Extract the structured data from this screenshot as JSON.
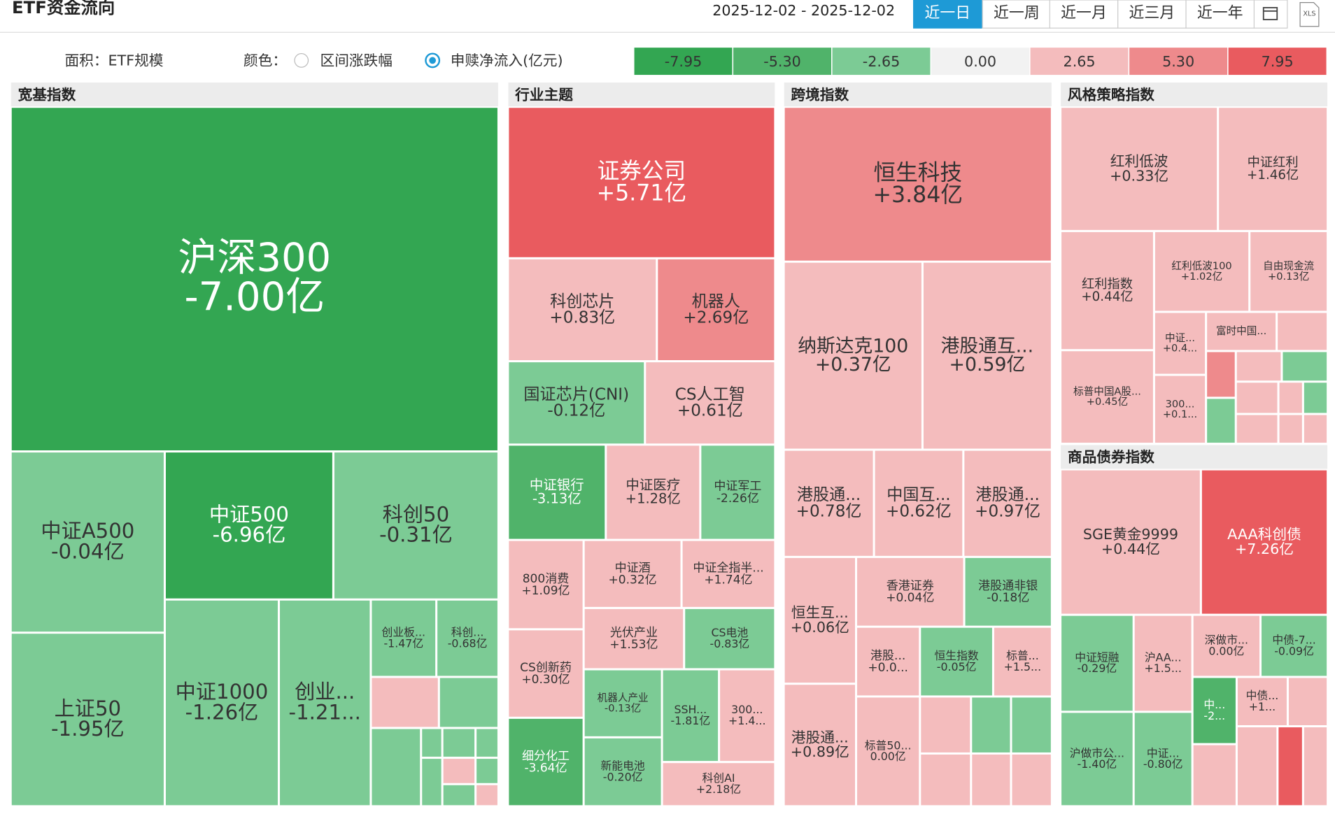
{
  "header": {
    "title": "ETF资金流向",
    "date_range": "2025-12-02 - 2025-12-02",
    "tabs": [
      "近一日",
      "近一周",
      "近一月",
      "近三月",
      "近一年"
    ],
    "export": "XLS"
  },
  "controls": {
    "area_label": "面积：ETF规模",
    "color_label": "颜色：",
    "options": [
      "区间涨跌幅",
      "申赎净流入(亿元)"
    ],
    "scale": [
      "-7.95",
      "-5.30",
      "-2.65",
      "0.00",
      "2.65",
      "5.30",
      "7.95"
    ]
  },
  "sections": [
    {
      "title": "宽基指数",
      "tiles": [
        {
          "label": "沪深300",
          "value": "-7.00亿"
        },
        {
          "label": "中证A500",
          "value": "-0.04亿"
        },
        {
          "label": "上证50",
          "value": "-1.95亿"
        },
        {
          "label": "中证500",
          "value": "-6.96亿"
        },
        {
          "label": "科创50",
          "value": "-0.31亿"
        },
        {
          "label": "中证1000",
          "value": "-1.26亿"
        },
        {
          "label": "创业...",
          "value": "-1.21..."
        },
        {
          "label": "创业板...",
          "value": "-1.47亿"
        },
        {
          "label": "科创...",
          "value": "-0.68亿"
        }
      ]
    },
    {
      "title": "行业主题",
      "tiles": [
        {
          "label": "证券公司",
          "value": "+5.71亿"
        },
        {
          "label": "科创芯片",
          "value": "+0.83亿"
        },
        {
          "label": "机器人",
          "value": "+2.69亿"
        },
        {
          "label": "国证芯片(CNI)",
          "value": "-0.12亿"
        },
        {
          "label": "CS人工智",
          "value": "+0.61亿"
        },
        {
          "label": "中证银行",
          "value": "-3.13亿"
        },
        {
          "label": "中证医疗",
          "value": "+1.28亿"
        },
        {
          "label": "中证军工",
          "value": "-2.26亿"
        },
        {
          "label": "800消费",
          "value": "+1.09亿"
        },
        {
          "label": "中证酒",
          "value": "+0.32亿"
        },
        {
          "label": "中证全指半...",
          "value": "+1.74亿"
        },
        {
          "label": "光伏产业",
          "value": "+1.53亿"
        },
        {
          "label": "CS电池",
          "value": "-0.83亿"
        },
        {
          "label": "CS创新药",
          "value": "+0.30亿"
        },
        {
          "label": "细分化工",
          "value": "-3.64亿"
        },
        {
          "label": "机器人产业",
          "value": "-0.13亿"
        },
        {
          "label": "SSH...",
          "value": "-1.81亿"
        },
        {
          "label": "300...",
          "value": "+1.4..."
        },
        {
          "label": "新能电池",
          "value": "-0.20亿"
        },
        {
          "label": "科创AI",
          "value": "+2.18亿"
        }
      ]
    },
    {
      "title": "跨境指数",
      "tiles": [
        {
          "label": "恒生科技",
          "value": "+3.84亿"
        },
        {
          "label": "纳斯达克100",
          "value": "+0.37亿"
        },
        {
          "label": "港股通互...",
          "value": "+0.59亿"
        },
        {
          "label": "港股通...",
          "value": "+0.78亿"
        },
        {
          "label": "中国互...",
          "value": "+0.62亿"
        },
        {
          "label": "港股通...",
          "value": "+0.97亿"
        },
        {
          "label": "恒生互...",
          "value": "+0.06亿"
        },
        {
          "label": "港股通...",
          "value": "+0.89亿"
        },
        {
          "label": "香港证券",
          "value": "+0.04亿"
        },
        {
          "label": "港股通非银",
          "value": "-0.18亿"
        },
        {
          "label": "港股...",
          "value": "+0.0..."
        },
        {
          "label": "恒生指数",
          "value": "-0.05亿"
        },
        {
          "label": "标普...",
          "value": "+1.5..."
        },
        {
          "label": "标普50...",
          "value": "0.00亿"
        }
      ]
    },
    {
      "title": "风格策略指数",
      "tiles": [
        {
          "label": "红利低波",
          "value": "+0.33亿"
        },
        {
          "label": "中证红利",
          "value": "+1.46亿"
        },
        {
          "label": "红利指数",
          "value": "+0.44亿"
        },
        {
          "label": "红利低波100",
          "value": "+1.02亿"
        },
        {
          "label": "自由现金流",
          "value": "+0.13亿"
        },
        {
          "label": "标普中国A股...",
          "value": "+0.45亿"
        },
        {
          "label": "中证...",
          "value": "+0.4..."
        },
        {
          "label": "富时中国..."
        },
        {
          "label": "300...",
          "value": "+0.1..."
        }
      ]
    },
    {
      "title": "商品债券指数",
      "tiles": [
        {
          "label": "SGE黄金9999",
          "value": "+0.44亿"
        },
        {
          "label": "AAA科创债",
          "value": "+7.26亿"
        },
        {
          "label": "中证短融",
          "value": "-0.29亿"
        },
        {
          "label": "沪AA...",
          "value": "+1.5..."
        },
        {
          "label": "深做市...",
          "value": "0.00亿"
        },
        {
          "label": "中债-7...",
          "value": "-0.09亿"
        },
        {
          "label": "中...",
          "value": "-2..."
        },
        {
          "label": "中债...",
          "value": "+1..."
        },
        {
          "label": "沪做市公...",
          "value": "-1.40亿"
        },
        {
          "label": "中证...",
          "value": "-0.80亿"
        }
      ]
    }
  ]
}
